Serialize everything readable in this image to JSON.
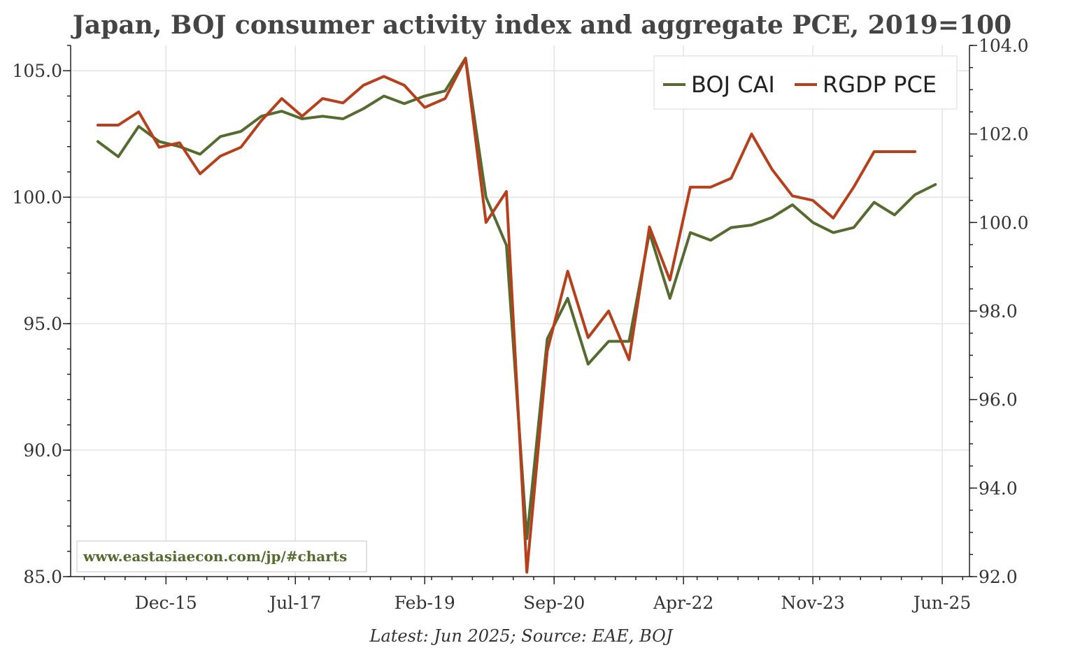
{
  "chart_data": {
    "type": "line",
    "title": "Japan, BOJ consumer activity index and aggregate PCE, 2019=100",
    "source_note": "Latest: Jun 2025; Source: EAE, BOJ",
    "watermark": "www.eastasiaecon.com/jp/#charts",
    "x_tick_labels": [
      "Dec-15",
      "Jul-17",
      "Feb-19",
      "Sep-20",
      "Apr-22",
      "Nov-23",
      "Jun-25"
    ],
    "x_tick_months": [
      192,
      211,
      230,
      249,
      268,
      287,
      306
    ],
    "x_range_months": [
      178,
      310
    ],
    "left_axis": {
      "ylim": [
        85.0,
        106.0
      ],
      "ticks": [
        "85.0",
        "90.0",
        "95.0",
        "100.0",
        "105.0"
      ],
      "tick_values": [
        85,
        90,
        95,
        100,
        105
      ]
    },
    "right_axis": {
      "ylim": [
        92.0,
        104.0
      ],
      "ticks": [
        "92.0",
        "94.0",
        "96.0",
        "98.0",
        "100.0",
        "102.0",
        "104.0"
      ],
      "tick_values": [
        92,
        94,
        96,
        98,
        100,
        102,
        104
      ]
    },
    "grid": true,
    "legend_position": "top-right",
    "series": [
      {
        "name": "BOJ CAI",
        "axis": "left",
        "color": "#556b2f",
        "points": [
          {
            "x": "2015-03",
            "y": 102.2
          },
          {
            "x": "2015-06",
            "y": 101.6
          },
          {
            "x": "2015-09",
            "y": 102.8
          },
          {
            "x": "2015-12",
            "y": 102.2
          },
          {
            "x": "2016-03",
            "y": 102.0
          },
          {
            "x": "2016-06",
            "y": 101.7
          },
          {
            "x": "2016-09",
            "y": 102.4
          },
          {
            "x": "2016-12",
            "y": 102.6
          },
          {
            "x": "2017-03",
            "y": 103.2
          },
          {
            "x": "2017-06",
            "y": 103.4
          },
          {
            "x": "2017-09",
            "y": 103.1
          },
          {
            "x": "2017-12",
            "y": 103.2
          },
          {
            "x": "2018-03",
            "y": 103.1
          },
          {
            "x": "2018-06",
            "y": 103.5
          },
          {
            "x": "2018-09",
            "y": 104.0
          },
          {
            "x": "2018-12",
            "y": 103.7
          },
          {
            "x": "2019-03",
            "y": 104.0
          },
          {
            "x": "2019-06",
            "y": 104.2
          },
          {
            "x": "2019-09",
            "y": 105.5
          },
          {
            "x": "2019-12",
            "y": 100.0
          },
          {
            "x": "2020-03",
            "y": 98.1
          },
          {
            "x": "2020-06",
            "y": 86.5
          },
          {
            "x": "2020-09",
            "y": 94.4
          },
          {
            "x": "2020-12",
            "y": 96.0
          },
          {
            "x": "2021-03",
            "y": 93.4
          },
          {
            "x": "2021-06",
            "y": 94.3
          },
          {
            "x": "2021-09",
            "y": 94.3
          },
          {
            "x": "2021-12",
            "y": 98.6
          },
          {
            "x": "2022-03",
            "y": 96.0
          },
          {
            "x": "2022-06",
            "y": 98.6
          },
          {
            "x": "2022-09",
            "y": 98.3
          },
          {
            "x": "2022-12",
            "y": 98.8
          },
          {
            "x": "2023-03",
            "y": 98.9
          },
          {
            "x": "2023-06",
            "y": 99.2
          },
          {
            "x": "2023-09",
            "y": 99.7
          },
          {
            "x": "2023-12",
            "y": 99.0
          },
          {
            "x": "2024-03",
            "y": 98.6
          },
          {
            "x": "2024-06",
            "y": 98.8
          },
          {
            "x": "2024-09",
            "y": 99.8
          },
          {
            "x": "2024-12",
            "y": 99.3
          },
          {
            "x": "2025-03",
            "y": 100.1
          },
          {
            "x": "2025-06",
            "y": 100.5
          }
        ]
      },
      {
        "name": "RGDP PCE",
        "axis": "right",
        "color": "#b5401b",
        "points": [
          {
            "x": "2015-03",
            "y": 102.2
          },
          {
            "x": "2015-06",
            "y": 102.2
          },
          {
            "x": "2015-09",
            "y": 102.5
          },
          {
            "x": "2015-12",
            "y": 101.7
          },
          {
            "x": "2016-03",
            "y": 101.8
          },
          {
            "x": "2016-06",
            "y": 101.1
          },
          {
            "x": "2016-09",
            "y": 101.5
          },
          {
            "x": "2016-12",
            "y": 101.7
          },
          {
            "x": "2017-03",
            "y": 102.3
          },
          {
            "x": "2017-06",
            "y": 102.8
          },
          {
            "x": "2017-09",
            "y": 102.4
          },
          {
            "x": "2017-12",
            "y": 102.8
          },
          {
            "x": "2018-03",
            "y": 102.7
          },
          {
            "x": "2018-06",
            "y": 103.1
          },
          {
            "x": "2018-09",
            "y": 103.3
          },
          {
            "x": "2018-12",
            "y": 103.1
          },
          {
            "x": "2019-03",
            "y": 102.6
          },
          {
            "x": "2019-06",
            "y": 102.8
          },
          {
            "x": "2019-09",
            "y": 103.7
          },
          {
            "x": "2019-12",
            "y": 100.0
          },
          {
            "x": "2020-03",
            "y": 100.7
          },
          {
            "x": "2020-06",
            "y": 92.1
          },
          {
            "x": "2020-09",
            "y": 97.1
          },
          {
            "x": "2020-12",
            "y": 98.9
          },
          {
            "x": "2021-03",
            "y": 97.4
          },
          {
            "x": "2021-06",
            "y": 98.0
          },
          {
            "x": "2021-09",
            "y": 96.9
          },
          {
            "x": "2021-12",
            "y": 99.9
          },
          {
            "x": "2022-03",
            "y": 98.7
          },
          {
            "x": "2022-06",
            "y": 100.8
          },
          {
            "x": "2022-09",
            "y": 100.8
          },
          {
            "x": "2022-12",
            "y": 101.0
          },
          {
            "x": "2023-03",
            "y": 102.0
          },
          {
            "x": "2023-06",
            "y": 101.2
          },
          {
            "x": "2023-09",
            "y": 100.6
          },
          {
            "x": "2023-12",
            "y": 100.5
          },
          {
            "x": "2024-03",
            "y": 100.1
          },
          {
            "x": "2024-06",
            "y": 100.8
          },
          {
            "x": "2024-09",
            "y": 101.6
          },
          {
            "x": "2024-12",
            "y": 101.6
          },
          {
            "x": "2025-03",
            "y": 101.6
          }
        ]
      }
    ]
  }
}
